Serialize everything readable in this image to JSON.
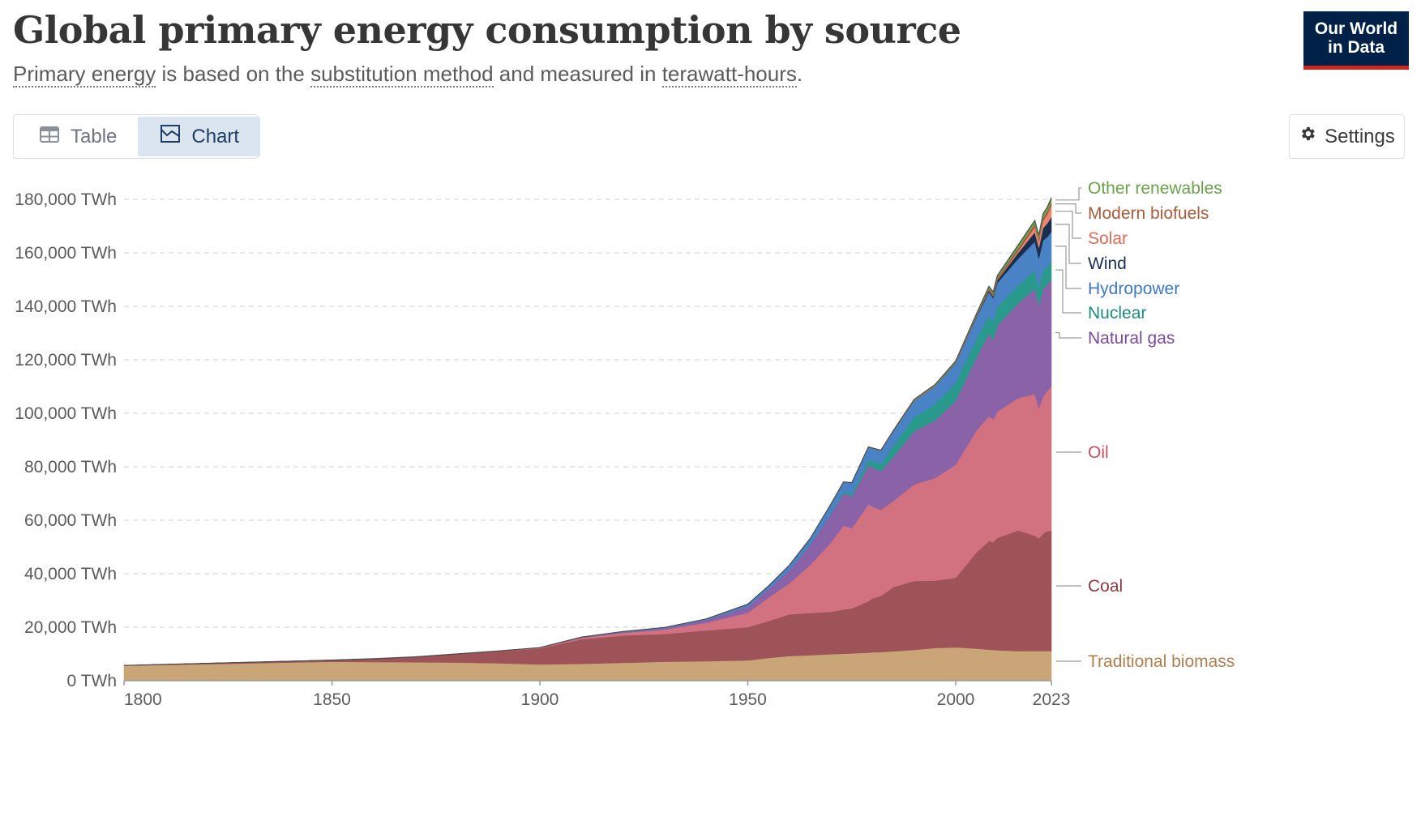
{
  "header": {
    "title": "Global primary energy consumption by source",
    "subtitle_parts": {
      "t1": "Primary energy",
      "t2": " is based on the ",
      "t3": "substitution method",
      "t4": " and measured in ",
      "t5": "terawatt-hours",
      "t6": "."
    },
    "logo_line1": "Our World",
    "logo_line2": "in Data"
  },
  "toolbar": {
    "table_label": "Table",
    "chart_label": "Chart",
    "settings_label": "Settings"
  },
  "colors": {
    "traditional_biomass": "#c9a577",
    "coal": "#9e5359",
    "oil": "#d2717f",
    "natural_gas": "#8a62a8",
    "nuclear": "#2a9a8d",
    "hydropower": "#4a82c6",
    "wind": "#1a2e4e",
    "solar": "#e98570",
    "modern_biofuels": "#a55d3c",
    "other_renewables": "#6aa24e"
  },
  "chart_data": {
    "type": "area",
    "stacked": true,
    "title": "Global primary energy consumption by source",
    "unit": "TWh",
    "xlim": [
      1800,
      2023
    ],
    "ylim": [
      0,
      180000
    ],
    "x_ticks": [
      "1800",
      "1850",
      "1900",
      "1950",
      "2000",
      "2023"
    ],
    "y_ticks": [
      "0 TWh",
      "20,000 TWh",
      "40,000 TWh",
      "60,000 TWh",
      "80,000 TWh",
      "100,000 TWh",
      "120,000 TWh",
      "140,000 TWh",
      "160,000 TWh",
      "180,000 TWh"
    ],
    "grid": true,
    "legend_placement": "right",
    "x": [
      1800,
      1850,
      1860,
      1870,
      1880,
      1890,
      1900,
      1910,
      1920,
      1930,
      1940,
      1950,
      1955,
      1960,
      1965,
      1970,
      1973,
      1975,
      1979,
      1980,
      1982,
      1985,
      1990,
      1995,
      2000,
      2005,
      2008,
      2009,
      2010,
      2015,
      2019,
      2020,
      2021,
      2022,
      2023
    ],
    "series": [
      {
        "name": "Traditional biomass",
        "values": [
          5600,
          7100,
          7000,
          6900,
          6800,
          6500,
          6100,
          6300,
          6700,
          7100,
          7300,
          7600,
          8500,
          9200,
          9500,
          9900,
          10100,
          10200,
          10500,
          10600,
          10700,
          11000,
          11500,
          12200,
          12500,
          12000,
          11600,
          11500,
          11400,
          11100,
          11100,
          11100,
          11100,
          11100,
          11100
        ]
      },
      {
        "name": "Coal",
        "values": [
          100,
          600,
          1200,
          2000,
          3200,
          4500,
          6000,
          9200,
          10200,
          10400,
          11500,
          12400,
          13800,
          15600,
          15800,
          15900,
          16500,
          16800,
          19200,
          20200,
          21000,
          24000,
          25800,
          25200,
          26000,
          36000,
          40600,
          40300,
          42000,
          45100,
          43100,
          42100,
          43900,
          44800,
          45000
        ]
      },
      {
        "name": "Oil",
        "values": [
          0,
          0,
          0,
          0,
          10,
          100,
          200,
          500,
          1000,
          1600,
          2900,
          5400,
          8800,
          11600,
          18000,
          25900,
          31400,
          30000,
          36300,
          34300,
          32200,
          32200,
          36100,
          38400,
          42300,
          45600,
          46700,
          45800,
          47200,
          49500,
          53000,
          48600,
          51200,
          52500,
          54000
        ]
      },
      {
        "name": "Natural gas",
        "values": [
          0,
          0,
          0,
          0,
          0,
          10,
          50,
          200,
          300,
          500,
          1000,
          2300,
          3200,
          5000,
          7500,
          10700,
          12000,
          12000,
          14500,
          14700,
          14500,
          16600,
          19900,
          21500,
          24000,
          27300,
          30800,
          29900,
          32200,
          35400,
          39300,
          38400,
          40400,
          39600,
          40100
        ]
      },
      {
        "name": "Nuclear",
        "values": [
          0,
          0,
          0,
          0,
          0,
          0,
          0,
          0,
          0,
          0,
          0,
          0,
          0,
          10,
          80,
          250,
          600,
          1000,
          2200,
          2300,
          2700,
          4000,
          5400,
          6100,
          6700,
          7100,
          7000,
          6800,
          7000,
          6700,
          7000,
          6700,
          7000,
          6700,
          6800
        ]
      },
      {
        "name": "Hydropower",
        "values": [
          0,
          0,
          0,
          0,
          0,
          0,
          20,
          100,
          200,
          300,
          400,
          900,
          1200,
          1800,
          2300,
          3400,
          3700,
          4000,
          4600,
          4800,
          4900,
          5500,
          6000,
          6700,
          7300,
          8000,
          8700,
          8700,
          9000,
          10000,
          10700,
          11000,
          11000,
          11200,
          10900
        ]
      },
      {
        "name": "Wind",
        "values": [
          0,
          0,
          0,
          0,
          0,
          0,
          0,
          0,
          0,
          0,
          0,
          0,
          0,
          0,
          0,
          0,
          0,
          0,
          0,
          0,
          0,
          0,
          10,
          20,
          80,
          270,
          560,
          680,
          900,
          2200,
          3500,
          4000,
          4600,
          5100,
          5500
        ]
      },
      {
        "name": "Solar",
        "values": [
          0,
          0,
          0,
          0,
          0,
          0,
          0,
          0,
          0,
          0,
          0,
          0,
          0,
          0,
          0,
          0,
          0,
          0,
          0,
          0,
          0,
          0,
          1,
          2,
          3,
          10,
          30,
          50,
          80,
          700,
          1900,
          2300,
          2700,
          3300,
          4300
        ]
      },
      {
        "name": "Modern biofuels",
        "values": [
          0,
          0,
          0,
          0,
          0,
          0,
          0,
          0,
          0,
          0,
          0,
          0,
          0,
          0,
          0,
          0,
          0,
          0,
          30,
          50,
          80,
          120,
          180,
          200,
          200,
          350,
          700,
          750,
          800,
          1000,
          1100,
          1050,
          1100,
          1150,
          1200
        ]
      },
      {
        "name": "Other renewables",
        "values": [
          0,
          0,
          0,
          0,
          0,
          0,
          0,
          0,
          0,
          0,
          0,
          0,
          0,
          10,
          20,
          30,
          40,
          50,
          80,
          90,
          100,
          150,
          300,
          400,
          500,
          650,
          800,
          850,
          900,
          1200,
          1400,
          1400,
          1500,
          1600,
          1700
        ]
      }
    ]
  }
}
